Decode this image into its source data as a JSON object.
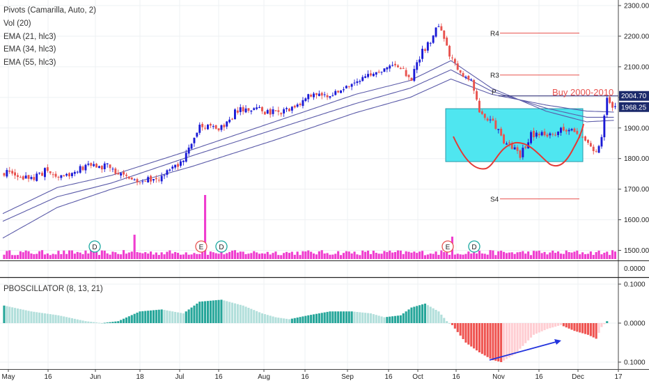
{
  "legend": {
    "pivots": "Pivots (Camarilla, Auto, 2)",
    "vol": "Vol (20)",
    "ema21": "EMA (21, hlc3)",
    "ema34": "EMA (34, hlc3)",
    "ema55": "EMA (55, hlc3)"
  },
  "oscillator_label": "PBOSCILLATOR (8, 13, 21)",
  "colors": {
    "up": "#1a1ad6",
    "down": "#e8534f",
    "ema": "#5a5aa8",
    "volume": "#ee33cc",
    "pivot": "#e8534f",
    "box_fill": "#4fe6f0",
    "cup_curve": "#e53935",
    "osc_strong_up": "#26a69a",
    "osc_weak_up": "#b2dfdb",
    "osc_strong_down": "#ef5350",
    "osc_weak_down": "#ffcdd2",
    "arrow": "#2233dd"
  },
  "chart_data": {
    "type": "candlestick",
    "x_axis_labels": [
      "May",
      "16",
      "Jun",
      "18",
      "Jul",
      "16",
      "Aug",
      "16",
      "Sep",
      "16",
      "Oct",
      "16",
      "Nov",
      "16",
      "Dec",
      "17"
    ],
    "price_axis": {
      "ticks": [
        "2300.00",
        "2200.00",
        "2100.00",
        "2000.00",
        "1900.00",
        "1800.00",
        "1700.00",
        "1600.00",
        "1500.00"
      ],
      "range": [
        1470,
        2305
      ]
    },
    "price_labels": {
      "last": "1968.25",
      "level": "2004.70"
    },
    "volume_axis_label": "0.0000",
    "pivots": [
      {
        "label": "R4",
        "value": 2210
      },
      {
        "label": "R3",
        "value": 2073
      },
      {
        "label": "P",
        "value": 2004.7
      },
      {
        "label": "S4",
        "value": 1668
      }
    ],
    "annotation": "Buy 2000-2010",
    "event_markers": [
      {
        "type": "D",
        "month": "Jun"
      },
      {
        "type": "E",
        "month": "Jul"
      },
      {
        "type": "D",
        "month": "Jul"
      },
      {
        "type": "E",
        "month": "Oct"
      },
      {
        "type": "D",
        "month": "Oct"
      }
    ],
    "oscillator_axis": {
      "ticks": [
        "0.1000",
        "0.0000",
        "0.1000"
      ],
      "range": [
        -0.115,
        0.125
      ]
    },
    "close_path": [
      [
        0,
        1755
      ],
      [
        10,
        1730
      ],
      [
        15,
        1760
      ],
      [
        22,
        1740
      ],
      [
        30,
        1775
      ],
      [
        38,
        1775
      ],
      [
        44,
        1745
      ],
      [
        50,
        1725
      ],
      [
        58,
        1740
      ],
      [
        66,
        1790
      ],
      [
        72,
        1900
      ],
      [
        80,
        1900
      ],
      [
        86,
        1960
      ],
      [
        92,
        1960
      ],
      [
        100,
        1950
      ],
      [
        106,
        1960
      ],
      [
        112,
        2000
      ],
      [
        118,
        2005
      ],
      [
        124,
        2030
      ],
      [
        130,
        2060
      ],
      [
        136,
        2080
      ],
      [
        142,
        2100
      ],
      [
        146,
        2090
      ],
      [
        150,
        2060
      ],
      [
        154,
        2150
      ],
      [
        157,
        2180
      ],
      [
        160,
        2240
      ],
      [
        163,
        2160
      ],
      [
        167,
        2090
      ],
      [
        172,
        2060
      ],
      [
        175,
        1950
      ],
      [
        180,
        1920
      ],
      [
        184,
        1860
      ],
      [
        190,
        1810
      ],
      [
        194,
        1880
      ],
      [
        198,
        1880
      ],
      [
        202,
        1880
      ],
      [
        206,
        1900
      ],
      [
        210,
        1885
      ],
      [
        214,
        1860
      ],
      [
        218,
        1820
      ],
      [
        220,
        1880
      ],
      [
        222,
        1990
      ],
      [
        225,
        1968
      ]
    ],
    "ema_paths": {
      "ema21": [
        [
          0,
          1620
        ],
        [
          20,
          1705
        ],
        [
          40,
          1745
        ],
        [
          70,
          1830
        ],
        [
          100,
          1920
        ],
        [
          130,
          2010
        ],
        [
          150,
          2055
        ],
        [
          165,
          2120
        ],
        [
          180,
          2030
        ],
        [
          200,
          1955
        ],
        [
          215,
          1920
        ],
        [
          225,
          1925
        ]
      ],
      "ema34": [
        [
          0,
          1595
        ],
        [
          20,
          1675
        ],
        [
          40,
          1720
        ],
        [
          70,
          1810
        ],
        [
          100,
          1895
        ],
        [
          130,
          1980
        ],
        [
          150,
          2030
        ],
        [
          165,
          2090
        ],
        [
          180,
          2020
        ],
        [
          200,
          1965
        ],
        [
          215,
          1935
        ],
        [
          225,
          1935
        ]
      ],
      "ema55": [
        [
          0,
          1540
        ],
        [
          20,
          1640
        ],
        [
          40,
          1700
        ],
        [
          70,
          1775
        ],
        [
          100,
          1860
        ],
        [
          130,
          1950
        ],
        [
          150,
          2000
        ],
        [
          165,
          2060
        ],
        [
          180,
          2010
        ],
        [
          200,
          1975
        ],
        [
          215,
          1955
        ],
        [
          225,
          1952
        ]
      ]
    },
    "osc_path": [
      [
        0,
        0.045
      ],
      [
        10,
        0.03
      ],
      [
        20,
        0.02
      ],
      [
        30,
        0.005
      ],
      [
        36,
        0.0
      ],
      [
        42,
        0.005
      ],
      [
        50,
        0.03
      ],
      [
        58,
        0.035
      ],
      [
        66,
        0.025
      ],
      [
        72,
        0.055
      ],
      [
        80,
        0.06
      ],
      [
        88,
        0.045
      ],
      [
        95,
        0.025
      ],
      [
        100,
        0.015
      ],
      [
        105,
        0.01
      ],
      [
        112,
        0.02
      ],
      [
        120,
        0.03
      ],
      [
        128,
        0.03
      ],
      [
        135,
        0.025
      ],
      [
        140,
        0.015
      ],
      [
        146,
        0.02
      ],
      [
        150,
        0.04
      ],
      [
        155,
        0.05
      ],
      [
        160,
        0.03
      ],
      [
        163,
        0.005
      ],
      [
        165,
        -0.005
      ],
      [
        170,
        -0.05
      ],
      [
        175,
        -0.075
      ],
      [
        180,
        -0.095
      ],
      [
        183,
        -0.1
      ],
      [
        188,
        -0.08
      ],
      [
        195,
        -0.03
      ],
      [
        200,
        -0.015
      ],
      [
        205,
        -0.005
      ],
      [
        210,
        -0.02
      ],
      [
        215,
        -0.03
      ],
      [
        218,
        -0.04
      ],
      [
        220,
        -0.01
      ],
      [
        222,
        0.005
      ]
    ],
    "volume_spikes": [
      {
        "bar": 74,
        "value": 1.0
      },
      {
        "bar": 48,
        "value": 0.38
      },
      {
        "bar": 165,
        "value": 0.35
      }
    ]
  }
}
